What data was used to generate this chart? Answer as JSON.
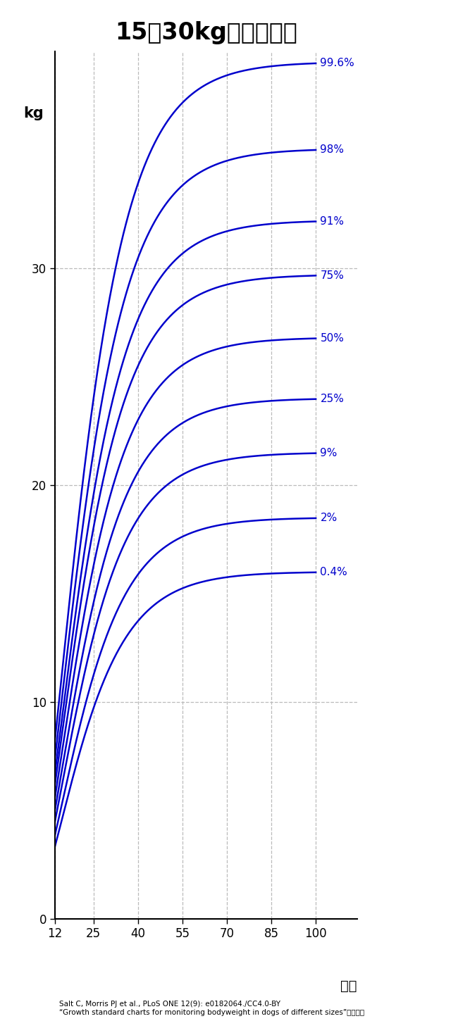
{
  "title": "15～30kg未満・オス",
  "ylabel": "kg",
  "xlabel": "週齢",
  "citation": "Salt C, Morris PJ et al., PLoS ONE 12(9): e0182064./CC4.0-BY\n“Growth standard charts for monitoring bodyweight in dogs of different sizes”より改変",
  "x_ticks": [
    12,
    25,
    40,
    55,
    70,
    85,
    100
  ],
  "y_ticks": [
    0,
    10,
    20,
    30
  ],
  "x_min": 12,
  "x_max": 100,
  "y_min": 0,
  "y_max": 40,
  "curve_color": "#0000CC",
  "grid_color": "#BBBBBB",
  "asymptotes": {
    "99.6": 39.5,
    "98": 35.5,
    "91": 32.2,
    "75": 29.7,
    "50": 26.8,
    "25": 24.0,
    "9": 21.5,
    "2": 18.5,
    "0.4": 16.0
  },
  "k": 0.075,
  "p": 3.0,
  "percentile_order": [
    "99.6",
    "98",
    "91",
    "75",
    "50",
    "25",
    "9",
    "2",
    "0.4"
  ],
  "label_texts": {
    "99.6": "99.6%",
    "98": "98%",
    "91": "91%",
    "75": "75%",
    "50": "50%",
    "25": "25%",
    "9": "9%",
    "2": "2%",
    "0.4": "0.4%"
  }
}
